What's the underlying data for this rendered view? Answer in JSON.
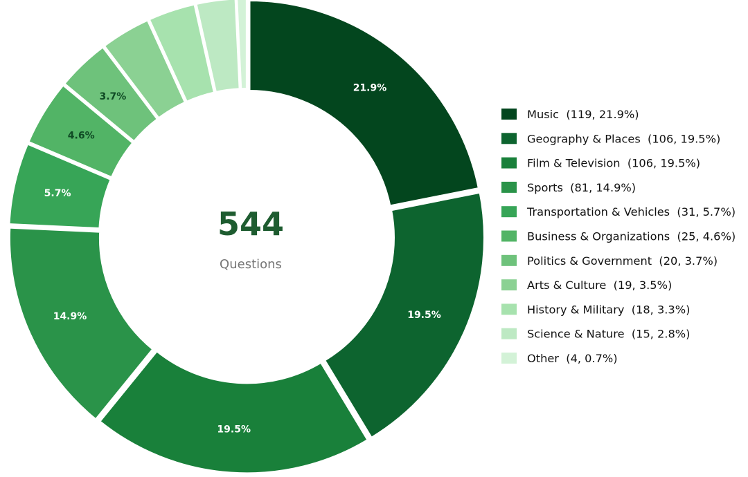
{
  "chart_data": {
    "type": "pie",
    "variant": "donut",
    "center": {
      "value": "544",
      "label": "Questions"
    },
    "legend_placement": "right",
    "start_angle_deg": 90,
    "direction": "clockwise",
    "slices": [
      {
        "label": "Music",
        "count": 119,
        "percent": 21.9,
        "legend_text": "Music  (119, 21.9%)",
        "pct_label": "21.9%",
        "color": "#03461e",
        "label_color": "#ffffff"
      },
      {
        "label": "Geography & Places",
        "count": 106,
        "percent": 19.5,
        "legend_text": "Geography & Places  (106, 19.5%)",
        "pct_label": "19.5%",
        "color": "#0d642f",
        "label_color": "#ffffff"
      },
      {
        "label": "Film & Television",
        "count": 106,
        "percent": 19.5,
        "legend_text": "Film & Television  (106, 19.5%)",
        "pct_label": "19.5%",
        "color": "#19803a",
        "label_color": "#ffffff"
      },
      {
        "label": "Sports",
        "count": 81,
        "percent": 14.9,
        "legend_text": "Sports  (81, 14.9%)",
        "pct_label": "14.9%",
        "color": "#2a9349",
        "label_color": "#ffffff"
      },
      {
        "label": "Transportation & Vehicles",
        "count": 31,
        "percent": 5.7,
        "legend_text": "Transportation & Vehicles  (31, 5.7%)",
        "pct_label": "5.7%",
        "color": "#37a557",
        "label_color": "#ffffff"
      },
      {
        "label": "Business & Organizations",
        "count": 25,
        "percent": 4.6,
        "legend_text": "Business & Organizations  (25, 4.6%)",
        "pct_label": "4.6%",
        "color": "#52b466",
        "label_color": "#0f4a24"
      },
      {
        "label": "Politics & Government",
        "count": 20,
        "percent": 3.7,
        "legend_text": "Politics & Government  (20, 3.7%)",
        "pct_label": "3.7%",
        "color": "#6ec27b",
        "label_color": "#0f4a24"
      },
      {
        "label": "Arts & Culture",
        "count": 19,
        "percent": 3.5,
        "legend_text": "Arts & Culture  (19, 3.5%)",
        "pct_label": "",
        "color": "#8bd193",
        "label_color": "#0f4a24"
      },
      {
        "label": "History & Military",
        "count": 18,
        "percent": 3.3,
        "legend_text": "History & Military  (18, 3.3%)",
        "pct_label": "",
        "color": "#a7e2ae",
        "label_color": "#0f4a24"
      },
      {
        "label": "Science & Nature",
        "count": 15,
        "percent": 2.8,
        "legend_text": "Science & Nature  (15, 2.8%)",
        "pct_label": "",
        "color": "#bde9c3",
        "label_color": "#0f4a24"
      },
      {
        "label": "Other",
        "count": 4,
        "percent": 0.7,
        "legend_text": "Other  (4, 0.7%)",
        "pct_label": "",
        "color": "#d3f2d7",
        "label_color": "#0f4a24"
      }
    ]
  }
}
